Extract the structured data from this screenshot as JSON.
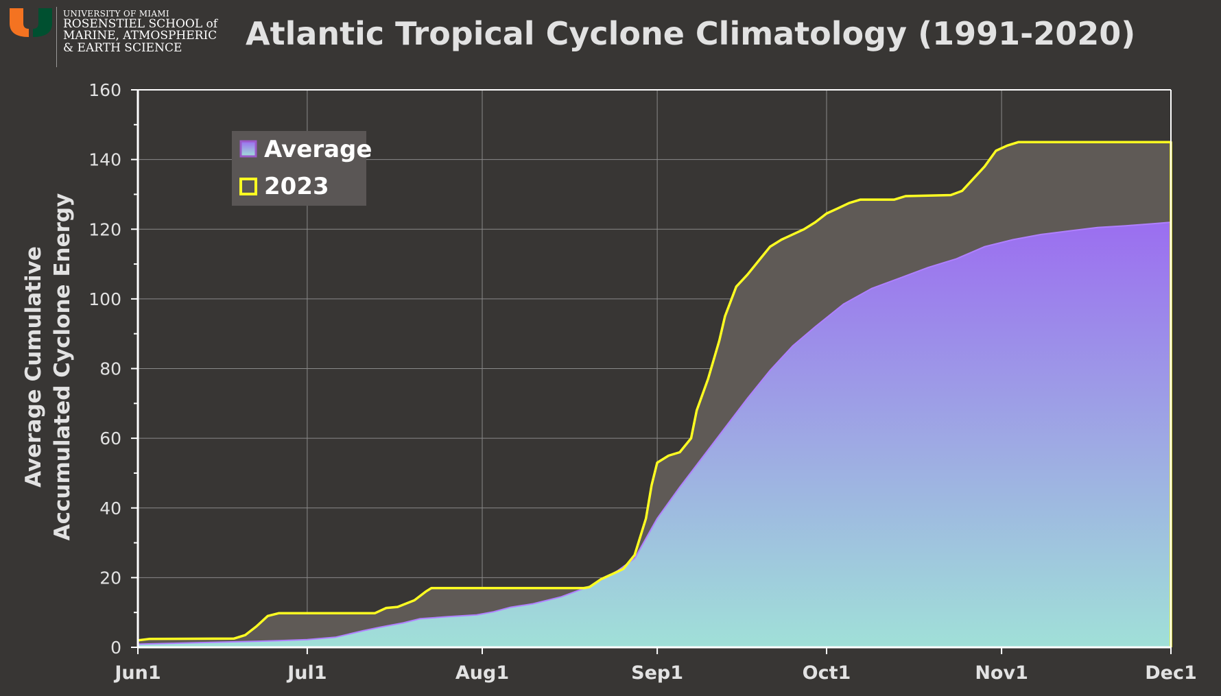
{
  "header": {
    "logo": {
      "line1": "UNIVERSITY OF MIAMI",
      "line2": "ROSENSTIEL SCHOOL of",
      "line3": "MARINE, ATMOSPHERIC",
      "line4": "& EARTH SCIENCE"
    }
  },
  "colors": {
    "background": "#383634",
    "average_fill_top": "#9b6ef0",
    "average_fill_bottom": "#a0e0d8",
    "average_line": "#b080ff",
    "year_line": "#ffff22",
    "excess_fill": "#5f5a56",
    "grid": "#8a8a8a",
    "axis": "#ffffff",
    "text": "#e2e2e2"
  },
  "chart_data": {
    "type": "area",
    "title": "Atlantic Tropical Cyclone Climatology (1991-2020)",
    "xlabel": "",
    "ylabel_lines": [
      "Average Cumulative",
      "Accumulated Cyclone Energy"
    ],
    "x_unit": "days since Jun1",
    "xlim": [
      0,
      183
    ],
    "ylim": [
      0,
      160
    ],
    "yticks": [
      0,
      20,
      40,
      60,
      80,
      100,
      120,
      140,
      160
    ],
    "xticks": [
      {
        "label": "Jun1",
        "day": 0
      },
      {
        "label": "Jul1",
        "day": 30
      },
      {
        "label": "Aug1",
        "day": 61
      },
      {
        "label": "Sep1",
        "day": 92
      },
      {
        "label": "Oct1",
        "day": 122
      },
      {
        "label": "Nov1",
        "day": 153
      },
      {
        "label": "Dec1",
        "day": 183
      }
    ],
    "legend": {
      "position": "top-left",
      "entries": [
        {
          "name": "Average",
          "style": "gradient-fill"
        },
        {
          "name": "2023",
          "style": "yellow-line"
        }
      ]
    },
    "series": [
      {
        "name": "Average",
        "kind": "area",
        "points": [
          [
            0,
            0.9
          ],
          [
            5,
            1.1
          ],
          [
            10,
            1.3
          ],
          [
            15,
            1.5
          ],
          [
            20,
            1.7
          ],
          [
            25,
            1.9
          ],
          [
            30,
            2.2
          ],
          [
            35,
            2.9
          ],
          [
            40,
            4.8
          ],
          [
            43,
            5.8
          ],
          [
            47,
            7.0
          ],
          [
            50,
            8.2
          ],
          [
            55,
            8.8
          ],
          [
            60,
            9.3
          ],
          [
            63,
            10.2
          ],
          [
            66,
            11.5
          ],
          [
            70,
            12.5
          ],
          [
            75,
            14.5
          ],
          [
            80,
            17.5
          ],
          [
            85,
            22.0
          ],
          [
            88,
            25.5
          ],
          [
            92,
            37.0
          ],
          [
            96,
            46.0
          ],
          [
            100,
            54.5
          ],
          [
            104,
            63.0
          ],
          [
            108,
            71.5
          ],
          [
            112,
            79.5
          ],
          [
            116,
            86.5
          ],
          [
            120,
            92.0
          ],
          [
            125,
            98.5
          ],
          [
            130,
            103.0
          ],
          [
            135,
            106.0
          ],
          [
            140,
            109.0
          ],
          [
            145,
            111.5
          ],
          [
            150,
            115.0
          ],
          [
            155,
            117.0
          ],
          [
            160,
            118.5
          ],
          [
            165,
            119.5
          ],
          [
            170,
            120.5
          ],
          [
            175,
            121.0
          ],
          [
            180,
            121.6
          ],
          [
            183,
            122.0
          ]
        ]
      },
      {
        "name": "2023",
        "kind": "line",
        "points": [
          [
            0,
            2.0
          ],
          [
            2,
            2.4
          ],
          [
            17,
            2.5
          ],
          [
            19,
            3.5
          ],
          [
            21,
            6.0
          ],
          [
            23,
            9.0
          ],
          [
            25,
            9.8
          ],
          [
            42,
            9.8
          ],
          [
            44,
            11.3
          ],
          [
            46,
            11.6
          ],
          [
            49,
            13.5
          ],
          [
            51,
            16.0
          ],
          [
            52,
            17.0
          ],
          [
            79,
            17.0
          ],
          [
            80,
            17.3
          ],
          [
            82,
            19.5
          ],
          [
            84,
            21.0
          ],
          [
            86,
            22.5
          ],
          [
            88,
            26.5
          ],
          [
            90,
            37.0
          ],
          [
            91,
            46.5
          ],
          [
            92,
            53.0
          ],
          [
            94,
            55.0
          ],
          [
            96,
            56.0
          ],
          [
            98,
            60.0
          ],
          [
            99,
            68.0
          ],
          [
            101,
            77.0
          ],
          [
            103,
            88.0
          ],
          [
            104,
            95.0
          ],
          [
            106,
            103.5
          ],
          [
            108,
            107.0
          ],
          [
            110,
            111.0
          ],
          [
            112,
            115.0
          ],
          [
            114,
            117.0
          ],
          [
            118,
            120.0
          ],
          [
            120,
            122.0
          ],
          [
            122,
            124.5
          ],
          [
            124,
            126.0
          ],
          [
            126,
            127.5
          ],
          [
            128,
            128.5
          ],
          [
            134,
            128.5
          ],
          [
            136,
            129.5
          ],
          [
            144,
            129.8
          ],
          [
            146,
            131.0
          ],
          [
            148,
            134.5
          ],
          [
            150,
            138.0
          ],
          [
            152,
            142.5
          ],
          [
            154,
            144.0
          ],
          [
            156,
            145.0
          ],
          [
            183,
            145.0
          ],
          [
            183,
            0
          ]
        ]
      }
    ]
  }
}
